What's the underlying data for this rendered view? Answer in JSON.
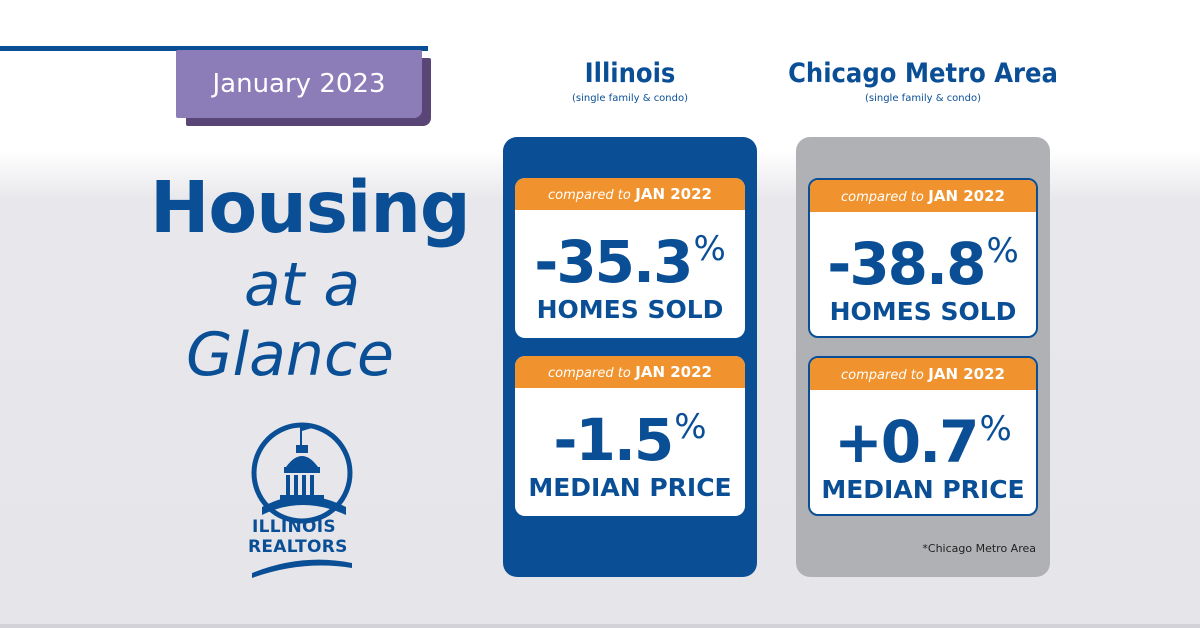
{
  "date_badge": "January 2023",
  "title": {
    "line1": "Housing",
    "line2": "at a",
    "line3": "Glance"
  },
  "logo": {
    "line1": "ILLINOIS",
    "line2": "REALTORS",
    "icon": "capitol-dome-icon"
  },
  "columns": [
    {
      "title": "Illinois",
      "subtitle": "(single family & condo)",
      "cards": [
        {
          "compare": "compared to",
          "period": "JAN 2022",
          "value": "-35.3",
          "unit": "%",
          "label": "HOMES SOLD"
        },
        {
          "compare": "compared to",
          "period": "JAN 2022",
          "value": "-1.5",
          "unit": "%",
          "label": "MEDIAN PRICE"
        }
      ]
    },
    {
      "title": "Chicago Metro Area",
      "subtitle": "(single family & condo)",
      "cards": [
        {
          "compare": "compared to",
          "period": "JAN 2022",
          "value": "-38.8",
          "unit": "%",
          "label": "HOMES SOLD"
        },
        {
          "compare": "compared to",
          "period": "JAN 2022",
          "value": "+0.7",
          "unit": "%",
          "label": "MEDIAN PRICE"
        }
      ],
      "footnote": "*Chicago Metro Area"
    }
  ],
  "colors": {
    "brand_blue": "#0a4f96",
    "accent_orange": "#f0932e",
    "badge_purple": "#8c7cb8",
    "panel_gray": "#b0b1b4"
  }
}
